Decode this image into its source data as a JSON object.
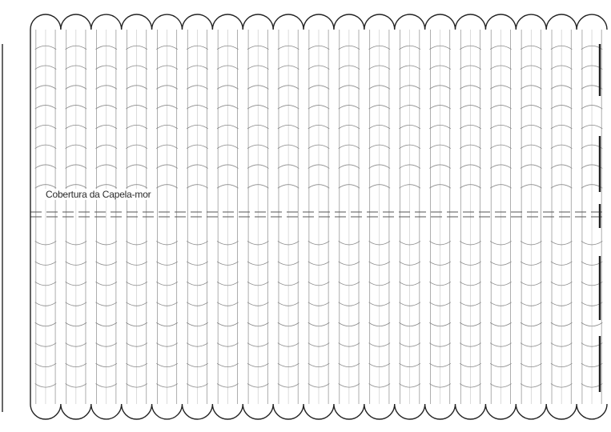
{
  "drawing": {
    "label": "Cobertura da Capela-mor",
    "line_color": "#555555",
    "background_color": "#ffffff",
    "tile_columns": 19,
    "tile_rows_per_half": 9
  }
}
